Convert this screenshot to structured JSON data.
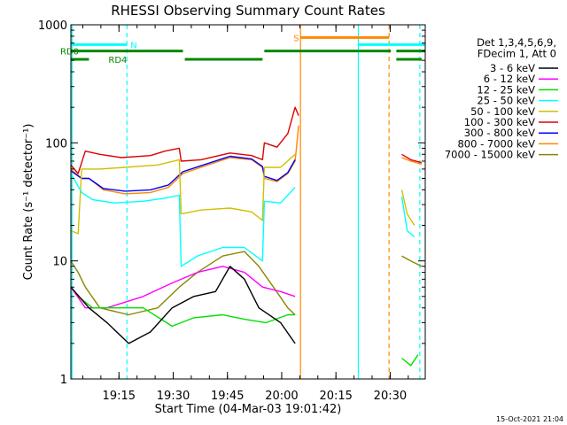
{
  "chart_data": {
    "type": "line",
    "title": "RHESSI Observing Summary Count Rates",
    "xlabel": "Start Time (04-Mar-03 19:01:42)",
    "ylabel": "Count Rate (s⁻¹ detector⁻¹)",
    "y_scale": "log",
    "ylim": [
      1,
      1000
    ],
    "xlim_minutes": [
      0,
      98
    ],
    "x_ticks": [
      {
        "label": "19:15",
        "t": 13.3
      },
      {
        "label": "19:30",
        "t": 28.3
      },
      {
        "label": "19:45",
        "t": 43.3
      },
      {
        "label": "20:00",
        "t": 58.3
      },
      {
        "label": "20:15",
        "t": 73.3
      },
      {
        "label": "20:30",
        "t": 88.3
      }
    ],
    "y_ticks": [
      {
        "label": "1",
        "v": 1
      },
      {
        "label": "10",
        "v": 10
      },
      {
        "label": "100",
        "v": 100
      },
      {
        "label": "1000",
        "v": 1000
      }
    ],
    "legend": {
      "placement": "right",
      "header": [
        "Det 1,3,4,5,6,9,",
        "FDecim 1, Att 0"
      ],
      "entries": [
        {
          "name": "3 - 6 keV",
          "color": "#000000"
        },
        {
          "name": "6 - 12 keV",
          "color": "#ff00ff"
        },
        {
          "name": "12 - 25 keV",
          "color": "#00e000"
        },
        {
          "name": "25 - 50 keV",
          "color": "#00ffff"
        },
        {
          "name": "50 - 100 keV",
          "color": "#d0c000"
        },
        {
          "name": "100 - 300 keV",
          "color": "#e00000"
        },
        {
          "name": "300 - 800 keV",
          "color": "#0000ff"
        },
        {
          "name": "800 - 7000 keV",
          "color": "#ff8800"
        },
        {
          "name": "7000 - 15000 keV",
          "color": "#888800"
        }
      ]
    },
    "series": [
      {
        "name": "100 - 300 keV",
        "color": "#e00000",
        "points": [
          [
            0,
            65
          ],
          [
            2,
            55
          ],
          [
            4,
            85
          ],
          [
            8,
            80
          ],
          [
            14,
            75
          ],
          [
            22,
            78
          ],
          [
            26,
            85
          ],
          [
            30,
            90
          ],
          [
            30.5,
            70
          ],
          [
            36,
            72
          ],
          [
            44,
            82
          ],
          [
            50,
            78
          ],
          [
            53,
            72
          ],
          [
            53.5,
            100
          ],
          [
            57,
            92
          ],
          [
            60,
            120
          ],
          [
            62,
            200
          ],
          [
            63,
            170
          ]
        ]
      },
      {
        "name": "800 - 7000 keV",
        "color": "#ff8800",
        "points": [
          [
            0,
            60
          ],
          [
            3,
            50
          ],
          [
            5,
            50
          ],
          [
            9,
            40
          ],
          [
            15,
            37
          ],
          [
            22,
            38
          ],
          [
            27,
            42
          ],
          [
            31,
            55
          ],
          [
            36,
            62
          ],
          [
            44,
            75
          ],
          [
            50,
            72
          ],
          [
            53,
            62
          ],
          [
            53.5,
            50
          ],
          [
            57,
            47
          ],
          [
            60,
            55
          ],
          [
            62,
            70
          ],
          [
            63,
            140
          ]
        ]
      },
      {
        "name": "300 - 800 keV",
        "color": "#0000ff",
        "points": [
          [
            0,
            58
          ],
          [
            3,
            50
          ],
          [
            5,
            50
          ],
          [
            9,
            41
          ],
          [
            15,
            39
          ],
          [
            22,
            40
          ],
          [
            27,
            44
          ],
          [
            31,
            57
          ],
          [
            36,
            64
          ],
          [
            44,
            77
          ],
          [
            50,
            73
          ],
          [
            53,
            63
          ],
          [
            53.5,
            52
          ],
          [
            57,
            48
          ],
          [
            60,
            56
          ],
          [
            62,
            72
          ]
        ]
      },
      {
        "name": "50 - 100 keV",
        "color": "#d0c000",
        "points": [
          [
            0,
            18
          ],
          [
            2,
            17
          ],
          [
            3,
            60
          ],
          [
            8,
            60
          ],
          [
            15,
            62
          ],
          [
            24,
            65
          ],
          [
            30,
            72
          ],
          [
            30.5,
            25
          ],
          [
            36,
            27
          ],
          [
            44,
            28
          ],
          [
            50,
            26
          ],
          [
            53,
            22
          ],
          [
            53.5,
            62
          ],
          [
            58,
            62
          ],
          [
            62,
            80
          ]
        ]
      },
      {
        "name": "25 - 50 keV",
        "color": "#00ffff",
        "points": [
          [
            0,
            55
          ],
          [
            3,
            38
          ],
          [
            6,
            33
          ],
          [
            12,
            31
          ],
          [
            20,
            32
          ],
          [
            26,
            34
          ],
          [
            30,
            36
          ],
          [
            30.5,
            9
          ],
          [
            35,
            11
          ],
          [
            42,
            13
          ],
          [
            48,
            13
          ],
          [
            53,
            10
          ],
          [
            53.5,
            32
          ],
          [
            58,
            31
          ],
          [
            62,
            42
          ]
        ]
      },
      {
        "name": "7000 - 15000 keV",
        "color": "#888800",
        "points": [
          [
            0,
            10
          ],
          [
            2,
            8
          ],
          [
            4,
            6
          ],
          [
            8,
            4
          ],
          [
            16,
            3.5
          ],
          [
            24,
            4
          ],
          [
            30,
            6
          ],
          [
            35,
            8
          ],
          [
            42,
            11
          ],
          [
            48,
            12
          ],
          [
            52,
            9
          ],
          [
            56,
            6
          ],
          [
            60,
            4
          ],
          [
            62,
            3.5
          ]
        ]
      },
      {
        "name": "6 - 12 keV",
        "color": "#ff00ff",
        "points": [
          [
            0,
            6
          ],
          [
            4,
            4
          ],
          [
            10,
            4
          ],
          [
            20,
            5
          ],
          [
            28,
            6.5
          ],
          [
            35,
            8
          ],
          [
            42,
            9
          ],
          [
            48,
            8
          ],
          [
            53,
            6
          ],
          [
            58,
            5.5
          ],
          [
            62,
            5
          ]
        ]
      },
      {
        "name": "12 - 25 keV",
        "color": "#00e000",
        "points": [
          [
            2,
            5
          ],
          [
            6,
            4
          ],
          [
            12,
            4
          ],
          [
            20,
            4
          ],
          [
            28,
            2.8
          ],
          [
            34,
            3.3
          ],
          [
            42,
            3.5
          ],
          [
            48,
            3.2
          ],
          [
            54,
            3
          ],
          [
            60,
            3.5
          ],
          [
            62,
            3.5
          ]
        ]
      },
      {
        "name": "3 - 6 keV",
        "color": "#000000",
        "points": [
          [
            0,
            6
          ],
          [
            5,
            4
          ],
          [
            10,
            3
          ],
          [
            16,
            2
          ],
          [
            22,
            2.5
          ],
          [
            28,
            4
          ],
          [
            34,
            5
          ],
          [
            40,
            5.5
          ],
          [
            44,
            9
          ],
          [
            48,
            7
          ],
          [
            52,
            4
          ],
          [
            58,
            3
          ],
          [
            62,
            2
          ]
        ]
      },
      {
        "name": "100 - 300 keV",
        "color": "#e00000",
        "points": [
          [
            91.5,
            80
          ],
          [
            94,
            72
          ],
          [
            97,
            68
          ]
        ]
      },
      {
        "name": "800 - 7000 keV",
        "color": "#ff8800",
        "points": [
          [
            91.5,
            75
          ],
          [
            94,
            70
          ],
          [
            97,
            66
          ]
        ]
      },
      {
        "name": "25 - 50 keV",
        "color": "#00ffff",
        "points": [
          [
            91.5,
            35
          ],
          [
            93,
            18
          ],
          [
            95,
            16
          ]
        ]
      },
      {
        "name": "50 - 100 keV",
        "color": "#d0c000",
        "points": [
          [
            91.5,
            40
          ],
          [
            93,
            25
          ],
          [
            95,
            20
          ]
        ]
      },
      {
        "name": "7000 - 15000 keV",
        "color": "#888800",
        "points": [
          [
            91.5,
            11
          ],
          [
            94,
            10
          ],
          [
            97,
            9
          ]
        ]
      },
      {
        "name": "12 - 25 keV",
        "color": "#00e000",
        "points": [
          [
            91.5,
            1.5
          ],
          [
            94,
            1.3
          ],
          [
            96,
            1.6
          ]
        ]
      }
    ],
    "flag_bars": [
      {
        "label": "N",
        "color": "#00ffff",
        "v": 680,
        "segments": [
          [
            0,
            15.5
          ],
          [
            79.5,
            98
          ]
        ]
      },
      {
        "label": "RD0",
        "color": "#008800",
        "v": 600,
        "segments": [
          [
            0,
            31
          ],
          [
            53.5,
            88.5
          ],
          [
            90,
            98
          ]
        ]
      },
      {
        "label": "RD4",
        "color": "#008800",
        "v": 510,
        "segments": [
          [
            0,
            5
          ],
          [
            31.5,
            53
          ],
          [
            90,
            97
          ]
        ]
      },
      {
        "label": "S",
        "color": "#ff8800",
        "v": 780,
        "segments": [
          [
            63.5,
            88
          ]
        ]
      }
    ],
    "vertical_markers": [
      {
        "t": 0.3,
        "color": "#00ffff",
        "style": "solid"
      },
      {
        "t": 15.5,
        "color": "#00ffff",
        "style": "dashed"
      },
      {
        "t": 63.5,
        "color": "#ff8800",
        "style": "solid"
      },
      {
        "t": 79.5,
        "color": "#00ffff",
        "style": "solid"
      },
      {
        "t": 88,
        "color": "#ff8800",
        "style": "dashed"
      },
      {
        "t": 96.5,
        "color": "#00ffff",
        "style": "dashed"
      }
    ]
  },
  "timestamp": "15-Oct-2021 21:04"
}
